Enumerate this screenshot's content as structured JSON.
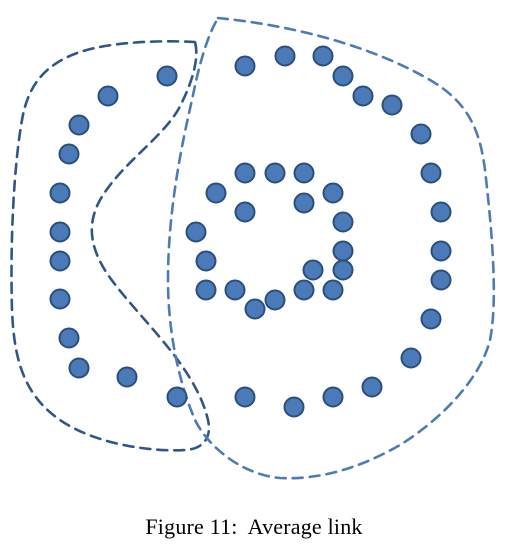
{
  "caption": {
    "label": "Figure 11:",
    "text": "Average link"
  },
  "colors": {
    "point_fill": "#4a7ab8",
    "point_stroke": "#2a4f7c",
    "left_cluster_outline": "#2f5687",
    "right_cluster_outline": "#4c7cb5",
    "background": "#ffffff"
  },
  "diagram": {
    "cluster_boundaries": [
      {
        "name": "left-crescent-cluster",
        "style": "dashed"
      },
      {
        "name": "outer-ring-and-inner-ring-cluster",
        "style": "dashed"
      }
    ]
  }
}
